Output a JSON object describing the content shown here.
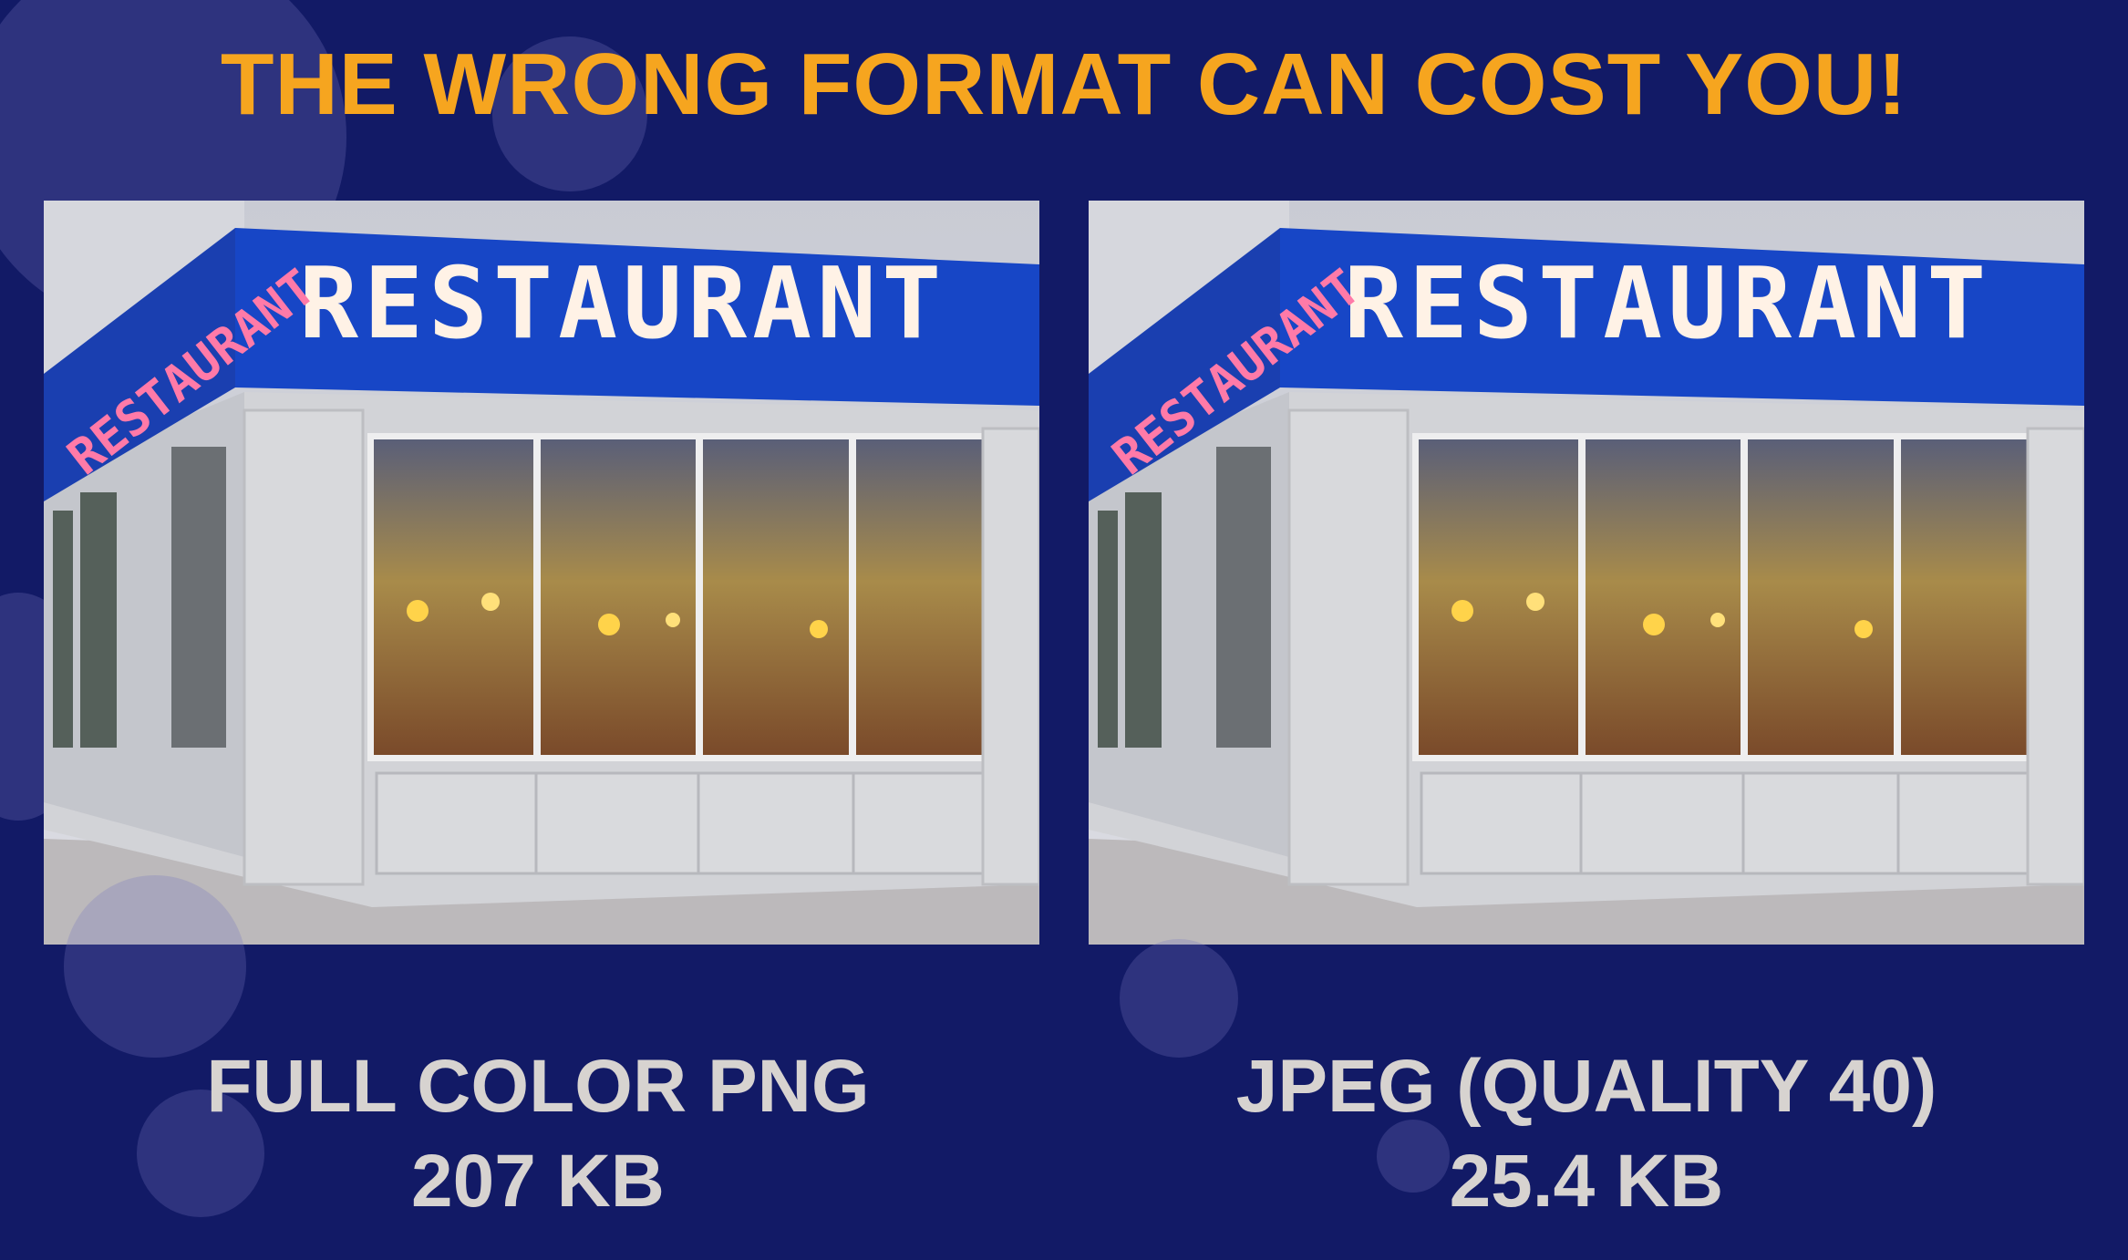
{
  "title": "THE WRONG FORMAT CAN COST YOU!",
  "colors": {
    "background": "#121a66",
    "title": "#f6a51f",
    "caption": "#d7d3d0",
    "sign_blue": "#1746c6"
  },
  "images": [
    {
      "sign_text": "RESTAURANT",
      "format_label": "FULL COLOR PNG",
      "size_label": "207 KB"
    },
    {
      "sign_text": "RESTAURANT",
      "format_label": "JPEG (QUALITY 40)",
      "size_label": "25.4 KB"
    }
  ]
}
